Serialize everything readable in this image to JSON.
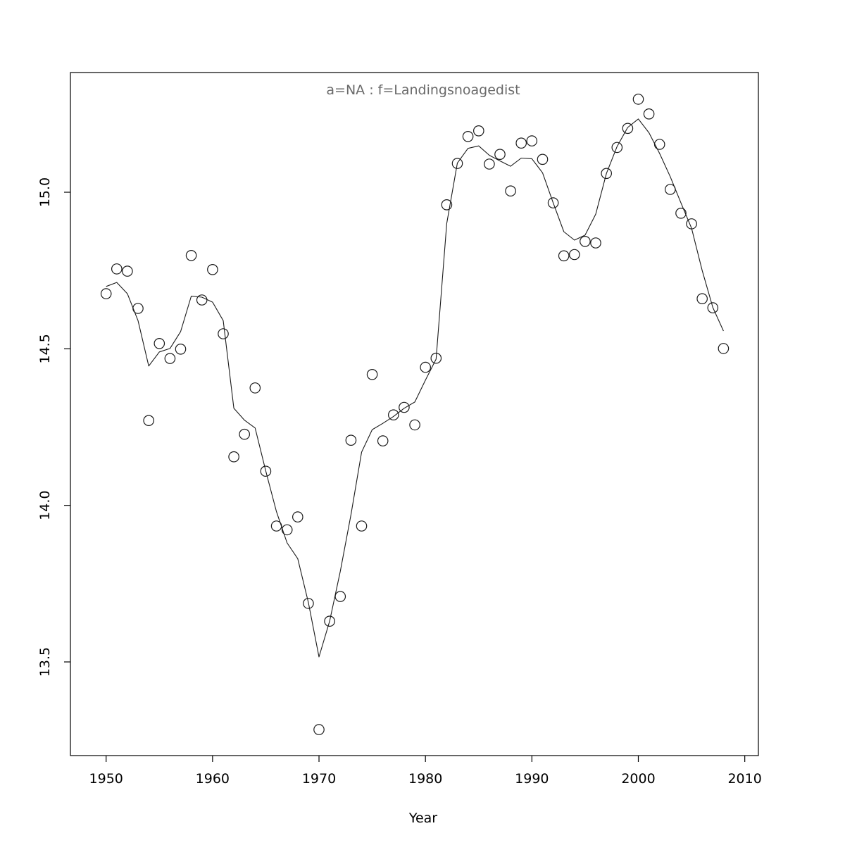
{
  "title": {
    "text": "a=NA : f=Landingsnoagedist",
    "color": "#6a6a6a"
  },
  "axes": {
    "xlabel": "Year",
    "x_tick_labels": [
      "1950",
      "1960",
      "1970",
      "1980",
      "1990",
      "2000",
      "2010"
    ],
    "y_tick_labels": [
      "13.5",
      "14.0",
      "14.5",
      "15.0"
    ]
  },
  "colors": {
    "background": "#ffffff",
    "frame": "#000000",
    "point_stroke": "#1a1a1a",
    "line_stroke": "#1a1a1a",
    "tick_label": "#000000",
    "title_gray": "#6a6a6a"
  },
  "chart_data": {
    "type": "scatter",
    "title": "a=NA : f=Landingsnoagedist",
    "xlabel": "Year",
    "ylabel": "",
    "grid": false,
    "legend": false,
    "xlim": [
      1946.6,
      2011.3
    ],
    "ylim": [
      13.2,
      15.38
    ],
    "x_ticks": [
      1950,
      1960,
      1970,
      1980,
      1990,
      2000,
      2010
    ],
    "y_ticks": [
      13.5,
      14.0,
      14.5,
      15.0
    ],
    "x": [
      1950,
      1951,
      1952,
      1953,
      1954,
      1955,
      1956,
      1957,
      1958,
      1959,
      1960,
      1961,
      1962,
      1963,
      1964,
      1965,
      1966,
      1967,
      1968,
      1969,
      1970,
      1971,
      1972,
      1973,
      1974,
      1975,
      1976,
      1977,
      1978,
      1979,
      1980,
      1981,
      1982,
      1983,
      1984,
      1985,
      1986,
      1987,
      1988,
      1989,
      1990,
      1991,
      1992,
      1993,
      1994,
      1995,
      1996,
      1997,
      1998,
      1999,
      2000,
      2001,
      2002,
      2003,
      2004,
      2005,
      2006,
      2007,
      2008
    ],
    "series": [
      {
        "name": "annual-observations",
        "style": "open-circle-points",
        "values": [
          14.676,
          14.755,
          14.748,
          14.629,
          14.271,
          14.517,
          14.469,
          14.499,
          14.798,
          14.656,
          14.753,
          14.548,
          14.155,
          14.227,
          14.375,
          14.109,
          13.934,
          13.922,
          13.963,
          13.687,
          13.284,
          13.63,
          13.709,
          14.208,
          13.934,
          14.418,
          14.206,
          14.289,
          14.313,
          14.257,
          14.441,
          14.47,
          14.96,
          15.092,
          15.178,
          15.196,
          15.09,
          15.121,
          15.004,
          15.157,
          15.164,
          15.105,
          14.966,
          14.797,
          14.801,
          14.843,
          14.838,
          15.06,
          15.143,
          15.204,
          15.297,
          15.25,
          15.153,
          15.009,
          14.933,
          14.899,
          14.66,
          14.631,
          14.501
        ]
      },
      {
        "name": "smooth-fit",
        "style": "line",
        "values": [
          14.699,
          14.712,
          14.676,
          14.59,
          14.445,
          14.49,
          14.501,
          14.555,
          14.668,
          14.665,
          14.649,
          14.59,
          14.31,
          14.272,
          14.247,
          14.11,
          13.98,
          13.88,
          13.83,
          13.69,
          13.516,
          13.63,
          13.79,
          13.97,
          14.17,
          14.242,
          14.262,
          14.284,
          14.31,
          14.33,
          14.4,
          14.467,
          14.9,
          15.093,
          15.14,
          15.148,
          15.118,
          15.1,
          15.083,
          15.109,
          15.107,
          15.062,
          14.966,
          14.874,
          14.847,
          14.863,
          14.93,
          15.06,
          15.146,
          15.207,
          15.234,
          15.19,
          15.124,
          15.05,
          14.966,
          14.885,
          14.75,
          14.632,
          14.557
        ]
      }
    ]
  }
}
